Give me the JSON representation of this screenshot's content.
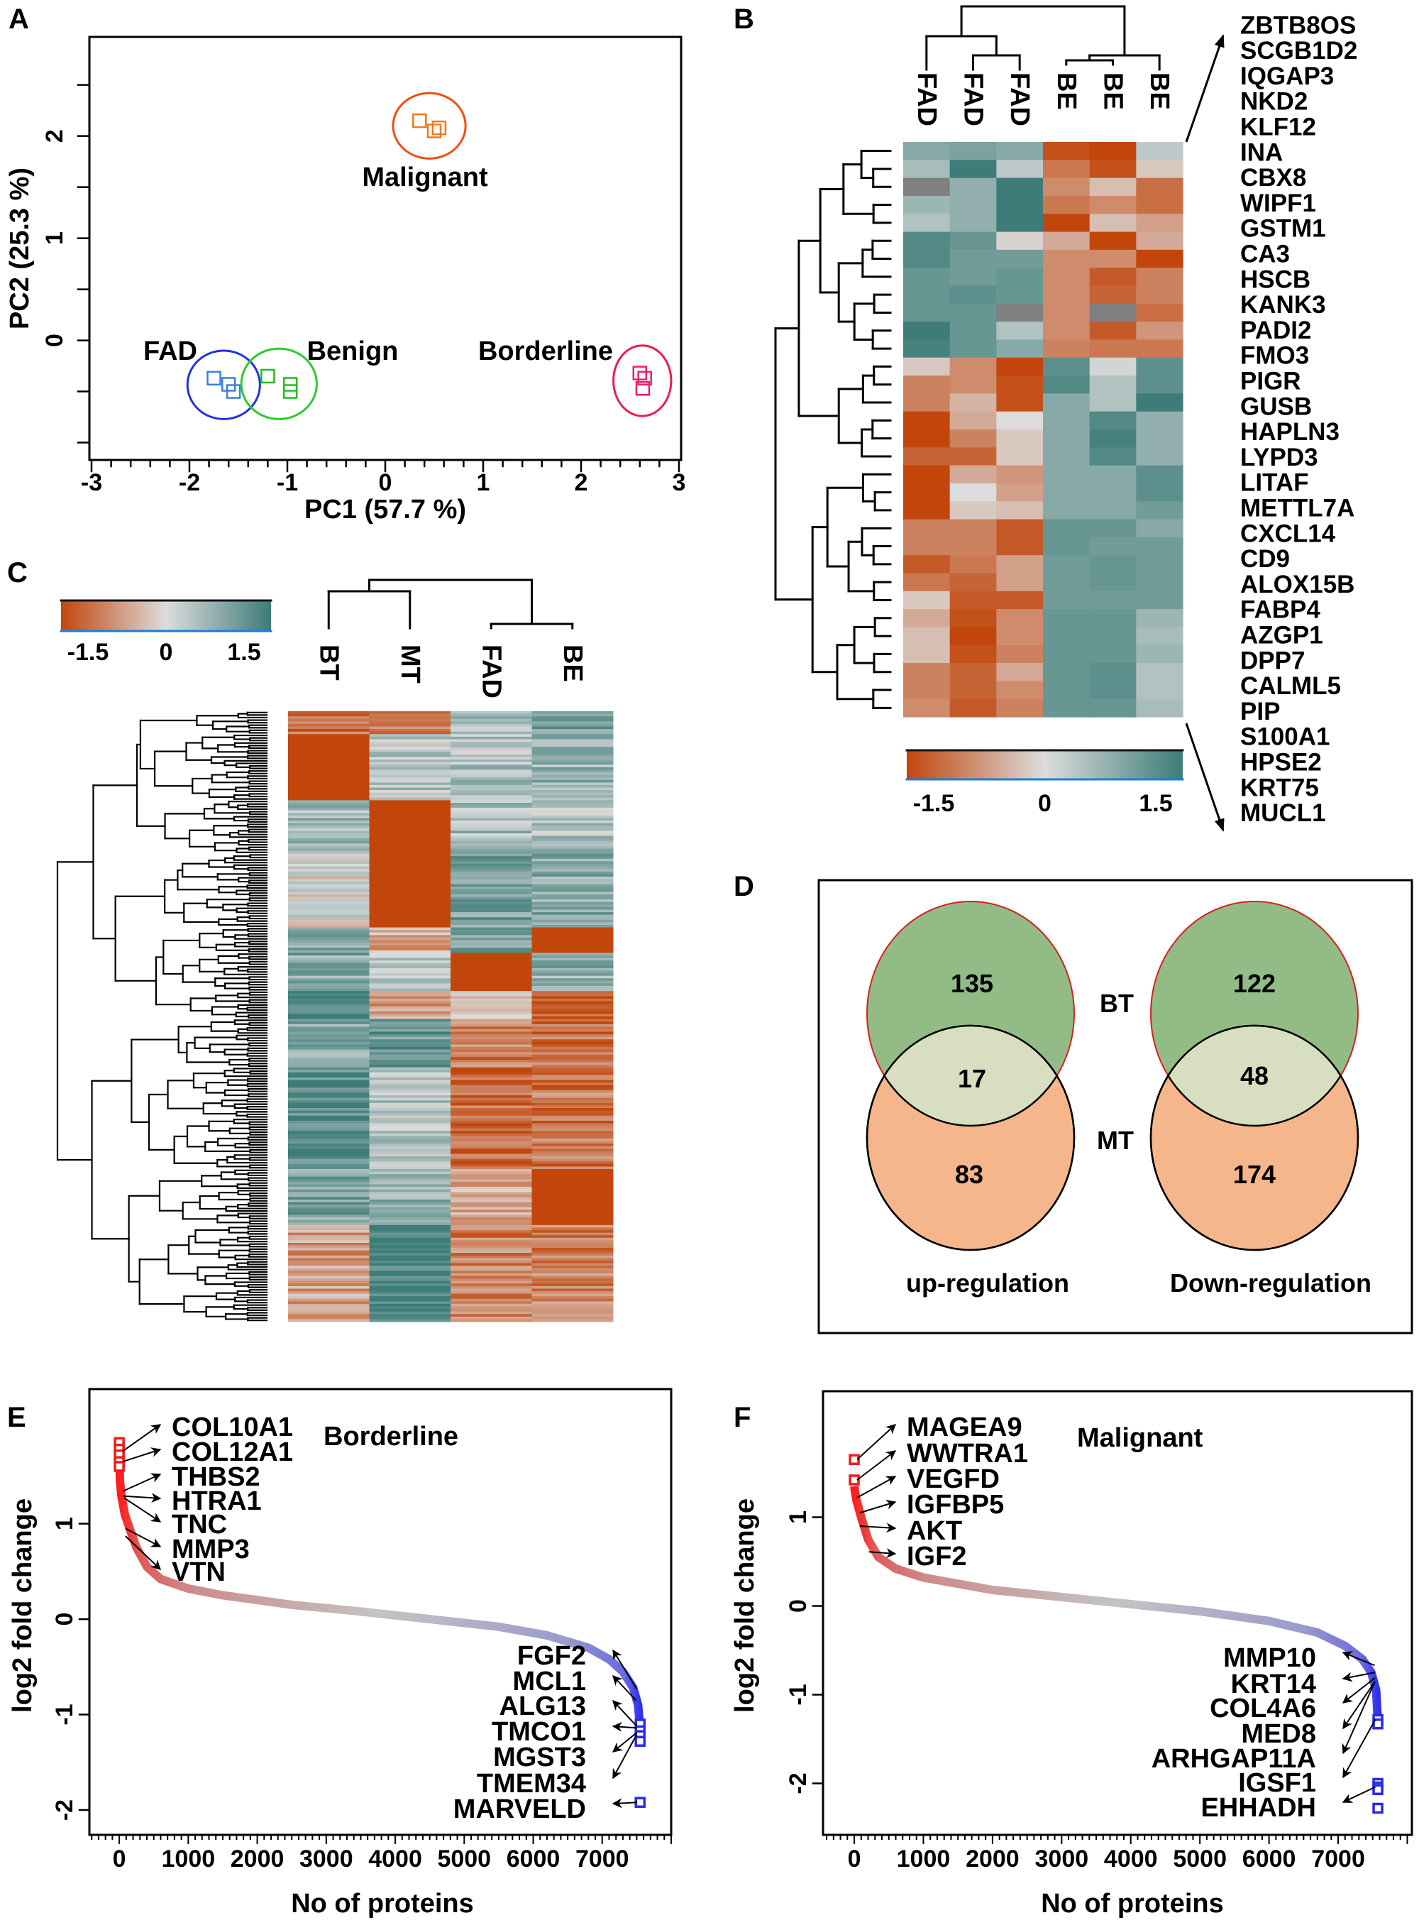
{
  "panels": {
    "A": "A",
    "B": "B",
    "C": "C",
    "D": "D",
    "E": "E",
    "F": "F"
  },
  "chart_data": [
    {
      "panel": "A",
      "type": "scatter",
      "xlabel": "PC1 (57.7 %)",
      "ylabel": "PC2 (25.3 %)",
      "xlim": [
        -3,
        3
      ],
      "ylim": [
        -1.17,
        2.97
      ],
      "xticks": [
        -3,
        -2,
        -1,
        0,
        1,
        2,
        3
      ],
      "yticks": [
        0,
        1,
        2
      ],
      "marker": "open-square",
      "groups": [
        {
          "name": "Malignant",
          "color": "#f07a1e",
          "ellipse_color": "#f04e12",
          "points": [
            [
              0.35,
              2.15
            ],
            [
              0.55,
              2.08
            ],
            [
              0.5,
              2.05
            ]
          ]
        },
        {
          "name": "FAD",
          "color": "#3a7fe6",
          "ellipse_color": "#1f32e0",
          "points": [
            [
              -1.75,
              -0.37
            ],
            [
              -1.6,
              -0.43
            ],
            [
              -1.55,
              -0.5
            ]
          ]
        },
        {
          "name": "Benign",
          "color": "#22bb22",
          "ellipse_color": "#2ccc2c",
          "points": [
            [
              -1.2,
              -0.35
            ],
            [
              -0.97,
              -0.43
            ],
            [
              -0.97,
              -0.5
            ]
          ]
        },
        {
          "name": "Borderline",
          "color": "#e8206a",
          "ellipse_color": "#e81e4e",
          "points": [
            [
              2.6,
              -0.32
            ],
            [
              2.65,
              -0.37
            ],
            [
              2.63,
              -0.47
            ]
          ]
        }
      ]
    },
    {
      "panel": "B",
      "type": "heatmap",
      "columns": [
        "FAD",
        "FAD",
        "FAD",
        "BE",
        "BE",
        "BE"
      ],
      "genes": [
        "ZBTB8OS",
        "SCGB1D2",
        "IQGAP3",
        "NKD2",
        "KLF12",
        "INA",
        "CBX8",
        "WIPF1",
        "GSTM1",
        "CA3",
        "HSCB",
        "KANK3",
        "PADI2",
        "FMO3",
        "PIGR",
        "GUSB",
        "HAPLN3",
        "LYPD3",
        "LITAF",
        "METTL7A",
        "CXCL14",
        "CD9",
        "ALOX15B",
        "FABP4",
        "AZGP1",
        "DPP7",
        "CALML5",
        "PIP",
        "S100A1",
        "HPSE2",
        "KRT75",
        "MUCL1"
      ],
      "values": [
        [
          0.8,
          0.9,
          0.8,
          -1.4,
          -1.5,
          0.3
        ],
        [
          0.5,
          1.5,
          0.3,
          -1.0,
          -1.4,
          -0.2
        ],
        [
          null,
          0.7,
          1.5,
          -0.8,
          -0.3,
          -1.1
        ],
        [
          0.6,
          0.7,
          1.5,
          -1.0,
          -0.8,
          -1.1
        ],
        [
          0.4,
          0.7,
          1.5,
          -1.6,
          -0.3,
          -0.6
        ],
        [
          1.3,
          1.1,
          -0.1,
          -0.5,
          -1.5,
          -0.5
        ],
        [
          1.3,
          1.0,
          1.0,
          -0.8,
          -0.8,
          -1.6
        ],
        [
          1.1,
          1.0,
          1.1,
          -0.8,
          -1.3,
          -0.9
        ],
        [
          1.1,
          1.2,
          1.1,
          -0.8,
          -1.2,
          -0.9
        ],
        [
          1.1,
          1.1,
          null,
          -0.8,
          null,
          -1.1
        ],
        [
          1.5,
          1.1,
          0.4,
          -0.8,
          -1.3,
          -0.7
        ],
        [
          1.4,
          1.1,
          0.8,
          -0.9,
          -1.0,
          -1.0
        ],
        [
          -0.2,
          -0.8,
          -1.5,
          1.2,
          0.1,
          1.2
        ],
        [
          -0.9,
          -0.8,
          -1.4,
          1.3,
          0.4,
          1.2
        ],
        [
          -0.9,
          -0.4,
          -1.4,
          0.8,
          0.4,
          1.5
        ],
        [
          -1.7,
          -0.5,
          0.0,
          0.8,
          1.3,
          0.7
        ],
        [
          -1.6,
          -0.9,
          -0.2,
          0.8,
          1.4,
          0.7
        ],
        [
          -1.2,
          -1.2,
          -0.2,
          0.8,
          1.3,
          0.7
        ],
        [
          -1.6,
          -0.5,
          -0.7,
          0.8,
          0.8,
          1.2
        ],
        [
          -1.8,
          0.0,
          -0.6,
          0.8,
          0.8,
          1.2
        ],
        [
          -1.8,
          -0.2,
          -0.3,
          0.8,
          0.8,
          1.0
        ],
        [
          -0.9,
          -0.9,
          -1.3,
          1.1,
          1.1,
          0.8
        ],
        [
          -0.9,
          -0.9,
          -1.3,
          1.1,
          1.0,
          1.0
        ],
        [
          -1.3,
          -1.0,
          -0.6,
          1.0,
          1.1,
          1.0
        ],
        [
          -1.0,
          -1.2,
          -0.6,
          1.0,
          1.1,
          1.0
        ],
        [
          -0.2,
          -1.3,
          -1.3,
          1.0,
          1.0,
          1.0
        ],
        [
          -0.5,
          -1.4,
          -0.8,
          1.1,
          1.1,
          0.6
        ],
        [
          -0.3,
          -1.6,
          -0.8,
          1.1,
          1.1,
          0.5
        ],
        [
          -0.3,
          -1.4,
          -0.9,
          1.1,
          1.1,
          0.6
        ],
        [
          -0.9,
          -1.2,
          -0.5,
          1.1,
          1.2,
          0.4
        ],
        [
          -0.9,
          -1.2,
          -0.8,
          1.1,
          1.2,
          0.4
        ],
        [
          -0.8,
          -1.3,
          -0.9,
          1.1,
          1.1,
          0.5
        ]
      ],
      "colorbar": {
        "ticks": [
          -1.5,
          0,
          1.5
        ]
      },
      "colors": {
        "low": "#c2460c",
        "mid": "#dcdcdc",
        "high": "#3d7c78",
        "missing": "#808080"
      }
    },
    {
      "panel": "C",
      "type": "heatmap",
      "columns": [
        "BT",
        "MT",
        "FAD",
        "BE"
      ],
      "row_blocks": [
        {
          "rows": 9,
          "values": [
            -1.2,
            -1.0,
            0.5,
            1.0
          ]
        },
        {
          "rows": 26,
          "values": [
            -1.8,
            0.3,
            0.4,
            0.6
          ]
        },
        {
          "rows": 21,
          "values": [
            0.5,
            -1.8,
            0.5,
            0.4
          ]
        },
        {
          "rows": 29,
          "values": [
            0.0,
            -1.8,
            0.9,
            0.8
          ]
        },
        {
          "rows": 10,
          "values": [
            0.8,
            -0.5,
            1.0,
            -1.8
          ]
        },
        {
          "rows": 15,
          "values": [
            0.8,
            0.3,
            -1.8,
            0.7
          ]
        },
        {
          "rows": 11,
          "values": [
            1.5,
            -0.6,
            -0.2,
            -1.2
          ]
        },
        {
          "rows": 19,
          "values": [
            0.8,
            1.1,
            -1.0,
            -1.1
          ]
        },
        {
          "rows": 40,
          "values": [
            1.3,
            0.3,
            -1.2,
            -1.0
          ]
        },
        {
          "rows": 22,
          "values": [
            0.9,
            0.7,
            -0.4,
            -1.8
          ]
        },
        {
          "rows": 38,
          "values": [
            -0.6,
            1.5,
            -0.9,
            -0.9
          ]
        }
      ],
      "colorbar": {
        "ticks": [
          -1.5,
          0,
          1.5
        ]
      }
    },
    {
      "panel": "D",
      "type": "venn",
      "sets": [
        "BT",
        "MT"
      ],
      "diagrams": [
        {
          "title": "up-regulation",
          "only_first": 135,
          "both": 17,
          "only_second": 83
        },
        {
          "title": "Down-regulation",
          "only_first": 122,
          "both": 48,
          "only_second": 174
        }
      ],
      "colors": {
        "first": "#93bb86",
        "second": "#f6b68c",
        "overlap": "#d8dfc0"
      }
    },
    {
      "panel": "E",
      "type": "line",
      "title": "Borderline",
      "xlabel": "No of proteins",
      "ylabel": "log2 fold change",
      "xlim": [
        -433,
        8000
      ],
      "ylim": [
        -2.26,
        2.41
      ],
      "xticks": [
        0,
        1000,
        2000,
        3000,
        4000,
        5000,
        6000,
        7000
      ],
      "yticks": [
        -2,
        -1,
        0,
        1
      ],
      "curve": [
        [
          0,
          1.85
        ],
        [
          5,
          1.6
        ],
        [
          10,
          1.45
        ],
        [
          30,
          1.3
        ],
        [
          80,
          1.1
        ],
        [
          150,
          0.95
        ],
        [
          250,
          0.75
        ],
        [
          400,
          0.55
        ],
        [
          600,
          0.42
        ],
        [
          1000,
          0.32
        ],
        [
          1500,
          0.25
        ],
        [
          2500,
          0.15
        ],
        [
          3500,
          0.08
        ],
        [
          4500,
          0.0
        ],
        [
          5500,
          -0.08
        ],
        [
          6200,
          -0.17
        ],
        [
          6800,
          -0.3
        ],
        [
          7100,
          -0.42
        ],
        [
          7300,
          -0.55
        ],
        [
          7450,
          -0.72
        ],
        [
          7520,
          -0.9
        ],
        [
          7545,
          -1.1
        ],
        [
          7550,
          -1.28
        ]
      ],
      "marked_points": [
        [
          0,
          1.85
        ],
        [
          0,
          1.78
        ],
        [
          0,
          1.72
        ],
        [
          0,
          1.65
        ],
        [
          0,
          1.6
        ],
        [
          7550,
          -1.1
        ],
        [
          7550,
          -1.17
        ],
        [
          7550,
          -1.22
        ],
        [
          7550,
          -1.28
        ],
        [
          7550,
          -1.92
        ]
      ],
      "up_labels": [
        {
          "label": "COL10A1",
          "x": 10,
          "y": 1.76
        },
        {
          "label": "COL12A1",
          "x": 10,
          "y": 1.65
        },
        {
          "label": "THBS2",
          "x": 10,
          "y": 1.34
        },
        {
          "label": "HTRA1",
          "x": 10,
          "y": 1.29
        },
        {
          "label": "TNC",
          "x": 30,
          "y": 1.27
        },
        {
          "label": "MMP3",
          "x": 50,
          "y": 0.95
        },
        {
          "label": "VTN",
          "x": 50,
          "y": 0.87
        }
      ],
      "down_labels": [
        {
          "label": "FGF2",
          "x": 7540,
          "y": -0.73
        },
        {
          "label": "MCL1",
          "x": 7530,
          "y": -0.85
        },
        {
          "label": "ALG13",
          "x": 7540,
          "y": -1.12
        },
        {
          "label": "TMCO1",
          "x": 7540,
          "y": -1.14
        },
        {
          "label": "MGST3",
          "x": 7540,
          "y": -1.19
        },
        {
          "label": "TMEM34",
          "x": 7540,
          "y": -1.21
        },
        {
          "label": "MARVELD",
          "x": 7550,
          "y": -1.92
        }
      ]
    },
    {
      "panel": "F",
      "type": "line",
      "title": "Malignant",
      "xlabel": "No of proteins",
      "ylabel": "log2 fold change",
      "xlim": [
        -452,
        8067
      ],
      "ylim": [
        -2.58,
        2.42
      ],
      "xticks": [
        0,
        1000,
        2000,
        3000,
        4000,
        5000,
        6000,
        7000
      ],
      "yticks": [
        -2,
        -1,
        0,
        1
      ],
      "curve": [
        [
          0,
          1.35
        ],
        [
          8,
          1.3
        ],
        [
          30,
          1.2
        ],
        [
          100,
          1.0
        ],
        [
          200,
          0.75
        ],
        [
          350,
          0.55
        ],
        [
          600,
          0.42
        ],
        [
          1000,
          0.32
        ],
        [
          2000,
          0.18
        ],
        [
          3000,
          0.1
        ],
        [
          4000,
          0.02
        ],
        [
          5000,
          -0.06
        ],
        [
          6000,
          -0.17
        ],
        [
          6700,
          -0.3
        ],
        [
          7100,
          -0.45
        ],
        [
          7350,
          -0.6
        ],
        [
          7480,
          -0.75
        ],
        [
          7550,
          -0.95
        ],
        [
          7570,
          -1.25
        ],
        [
          7575,
          -1.33
        ]
      ],
      "marked_points": [
        [
          0,
          1.65
        ],
        [
          0,
          1.42
        ],
        [
          7575,
          -1.28
        ],
        [
          7575,
          -1.33
        ],
        [
          7575,
          -2.0
        ],
        [
          7575,
          -2.04
        ],
        [
          7575,
          -2.07
        ],
        [
          7575,
          -2.28
        ]
      ],
      "up_labels": [
        {
          "label": "MAGEA9",
          "x": 0,
          "y": 1.65
        },
        {
          "label": "WWTRA1",
          "x": 0,
          "y": 1.42
        },
        {
          "label": "VEGFD",
          "x": 0,
          "y": 1.22
        },
        {
          "label": "IGFBP5",
          "x": 40,
          "y": 1.05
        },
        {
          "label": "AKT",
          "x": 40,
          "y": 0.9
        },
        {
          "label": "IGF2",
          "x": 170,
          "y": 0.61
        }
      ],
      "down_labels": [
        {
          "label": "MMP10",
          "x": 7570,
          "y": -0.67
        },
        {
          "label": "KRT14",
          "x": 7570,
          "y": -0.75
        },
        {
          "label": "COL4A6",
          "x": 7575,
          "y": -0.81
        },
        {
          "label": "MED8",
          "x": 7575,
          "y": -0.85
        },
        {
          "label": "ARHGAP11A",
          "x": 7575,
          "y": -0.85
        },
        {
          "label": "IGSF1",
          "x": 7580,
          "y": -1.28
        },
        {
          "label": "EHHADH",
          "x": 7580,
          "y": -2.04
        }
      ]
    }
  ]
}
